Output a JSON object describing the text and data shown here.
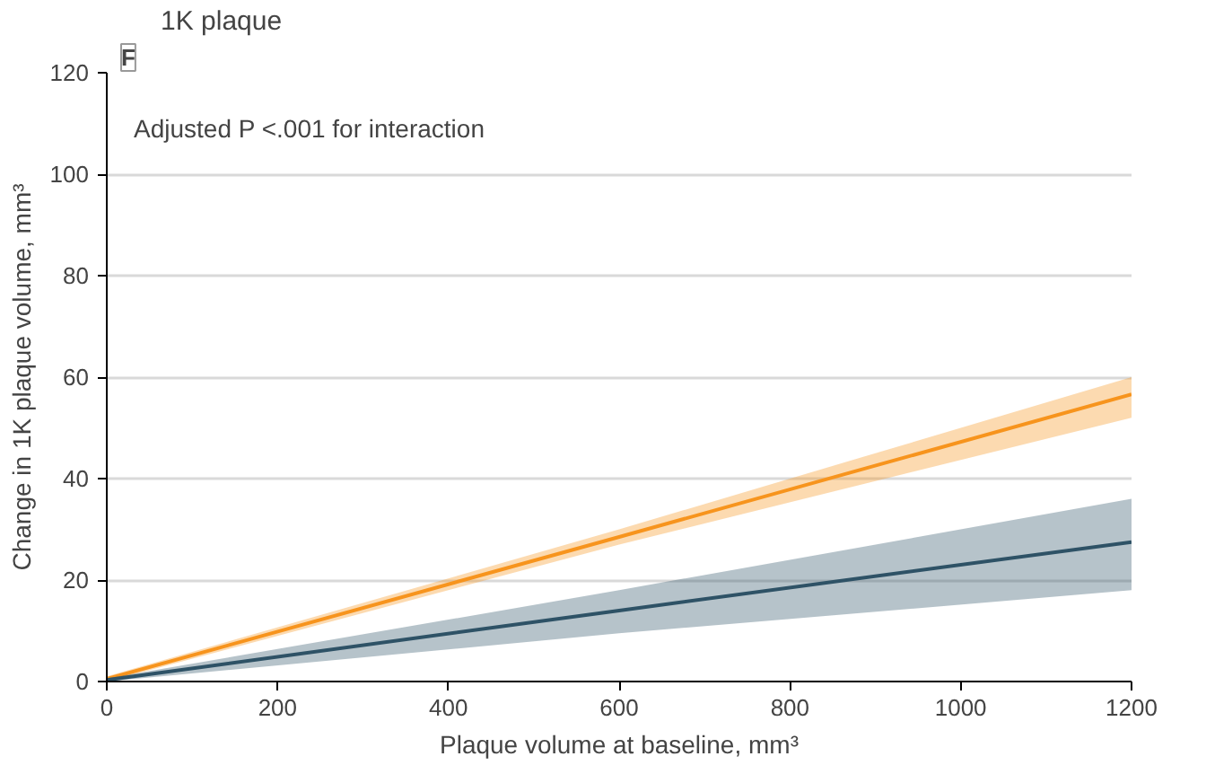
{
  "chart_data": {
    "type": "line",
    "title": "1K plaque",
    "xlabel": "Plaque volume at baseline, mm³",
    "ylabel": "Change in 1K plaque volume, mm³",
    "annotations": [
      "F",
      "Adjusted P <.001 for interaction"
    ],
    "x": [
      0,
      600,
      1200
    ],
    "series": [
      {
        "color": "#f7941d",
        "values": [
          0.5,
          28.5,
          56.6
        ],
        "lower": [
          0,
          27,
          52
        ],
        "upper": [
          1,
          30,
          60
        ]
      },
      {
        "color": "#2e5266",
        "values": [
          0.3,
          14,
          27.5
        ],
        "lower": [
          0,
          9.5,
          18
        ],
        "upper": [
          0.6,
          18,
          36
        ]
      }
    ],
    "xlim": [
      0,
      1200
    ],
    "ylim": [
      0,
      120
    ],
    "xticks": [
      0,
      200,
      400,
      600,
      800,
      1000,
      1200
    ],
    "yticks": [
      0,
      20,
      40,
      60,
      80,
      100,
      120
    ],
    "grid": "y"
  }
}
